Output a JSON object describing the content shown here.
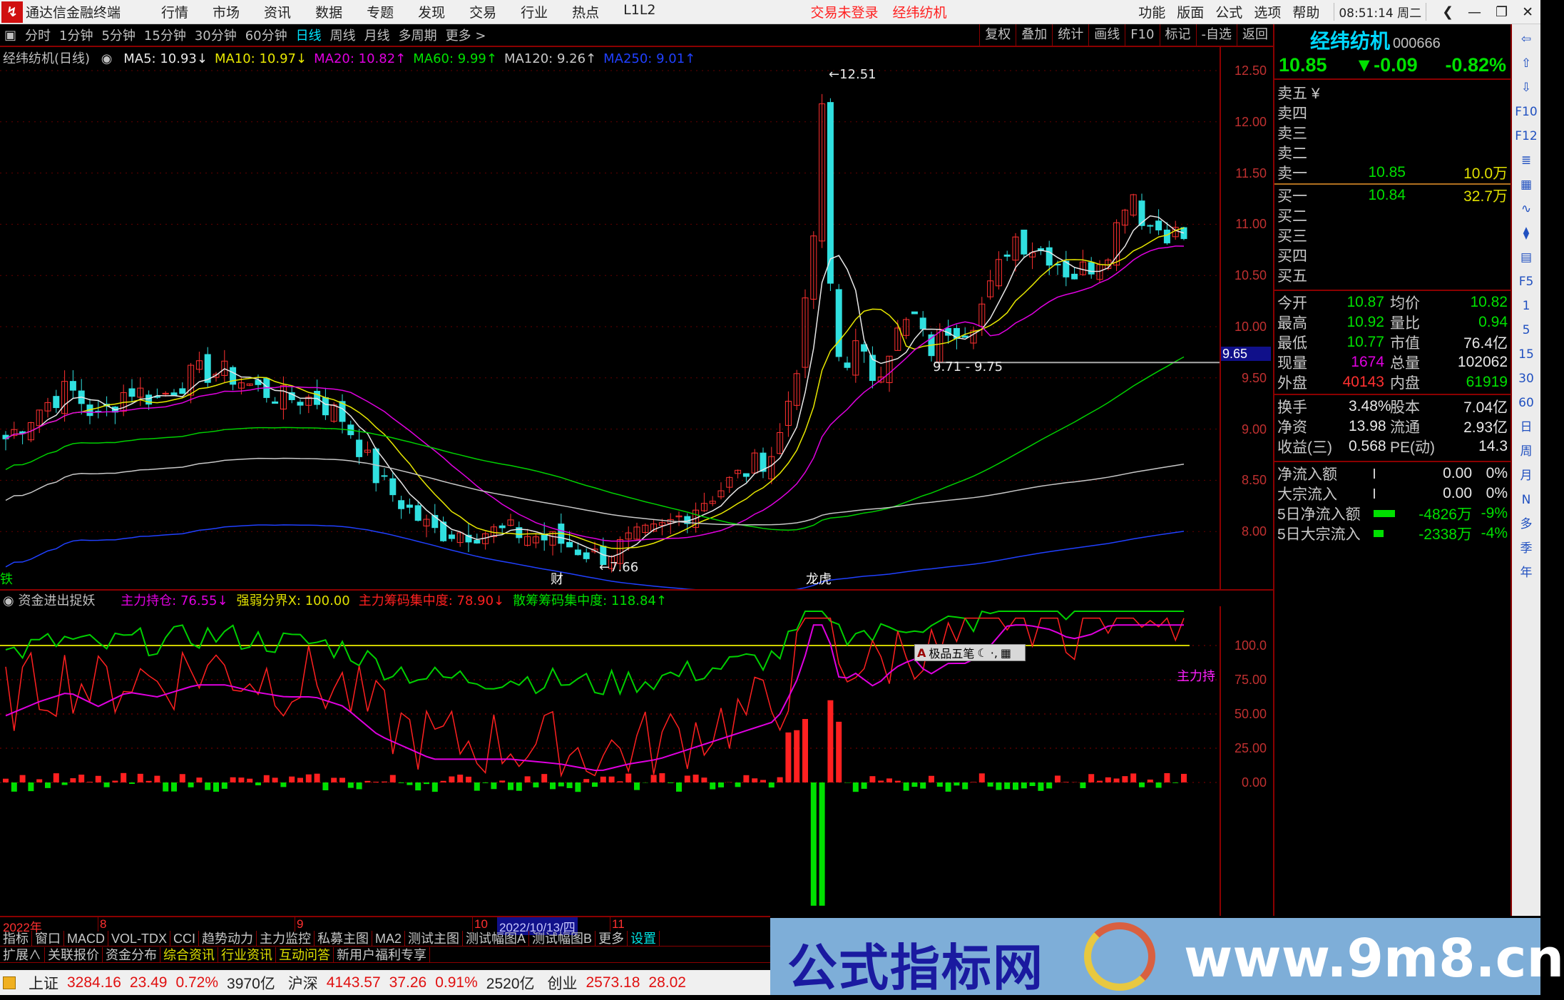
{
  "titlebar": {
    "app": "通达信金融终端",
    "menus": [
      "行情",
      "市场",
      "资讯",
      "数据",
      "专题",
      "发现",
      "交易",
      "行业",
      "热点",
      "L1L2"
    ],
    "login": "交易未登录",
    "stock": "经纬纺机",
    "right_menus": [
      "功能",
      "版面",
      "公式",
      "选项",
      "帮助"
    ],
    "time": "08:51:14 周二"
  },
  "toolbar": {
    "periods": [
      "分时",
      "1分钟",
      "5分钟",
      "15分钟",
      "30分钟",
      "60分钟",
      "日线",
      "周线",
      "月线",
      "多周期",
      "更多 >"
    ],
    "selected": "日线",
    "tools": [
      "复权",
      "叠加",
      "统计",
      "画线",
      "F10",
      "标记",
      "-自选",
      "返回"
    ]
  },
  "main_chart": {
    "title": "经纬纺机(日线)",
    "ma": [
      {
        "label": "MA5: 10.93↓",
        "color": "#e8e8e8"
      },
      {
        "label": "MA10: 10.97↓",
        "color": "#e8e800"
      },
      {
        "label": "MA20: 10.82↑",
        "color": "#e000e0"
      },
      {
        "label": "MA60: 9.99↑",
        "color": "#00e000"
      },
      {
        "label": "MA120: 9.26↑",
        "color": "#c8c8c8"
      },
      {
        "label": "MA250: 9.01↑",
        "color": "#2040ff"
      }
    ],
    "price_axis": [
      "12.50",
      "12.00",
      "11.50",
      "11.00",
      "10.50",
      "10.00",
      "9.50",
      "9.00",
      "8.50",
      "8.00"
    ],
    "high_label": "12.51",
    "low_label": "7.66",
    "range_label": "9.71 - 9.75",
    "cursor_price": "9.65",
    "markers": [
      "铁",
      "财",
      "龙虎"
    ]
  },
  "indicator": {
    "name": "资金进出捉妖",
    "values": [
      {
        "label": "主力持仓: 76.55↓",
        "color": "#e000e0"
      },
      {
        "label": "强弱分界X: 100.00",
        "color": "#e0e000"
      },
      {
        "label": "主力筹码集中度: 78.90↓",
        "color": "#ff2020"
      },
      {
        "label": "散筹筹码集中度: 118.84↑",
        "color": "#00e000"
      }
    ],
    "axis": [
      "100.0",
      "75.00",
      "50.00",
      "25.00",
      "0.00"
    ],
    "tag": "主力持"
  },
  "ime": {
    "label": "极品五笔"
  },
  "dates": {
    "year": "2022年",
    "months": [
      "8",
      "9",
      "10",
      "11"
    ],
    "cursor": "2022/10/13/四"
  },
  "tabs1": [
    "指标",
    "窗口",
    "MACD",
    "VOL-TDX",
    "CCI",
    "趋势动力",
    "主力监控",
    "私募主图",
    "MA2",
    "测试主图",
    "测试幅图A",
    "测试幅图B",
    "更多",
    "设置"
  ],
  "tabs2": [
    "扩展∧",
    "关联报价",
    "资金分布",
    "综合资讯",
    "行业资讯",
    "互动问答",
    "新用户福利专享"
  ],
  "status": {
    "items": [
      [
        "上证",
        "3284.16",
        "23.49",
        "0.72%",
        "3970亿"
      ],
      [
        "沪深",
        "4143.57",
        "37.26",
        "0.91%",
        "2520亿"
      ],
      [
        "创业",
        "2573.18",
        "28.02"
      ]
    ]
  },
  "quote": {
    "name": "经纬纺机",
    "code": "000666",
    "price": "10.85",
    "change": "▼-0.09",
    "pct": "-0.82%",
    "asks": [
      [
        "卖五 ¥",
        "",
        ""
      ],
      [
        "卖四",
        "",
        ""
      ],
      [
        "卖三",
        "",
        ""
      ],
      [
        "卖二",
        "",
        ""
      ],
      [
        "卖一",
        "10.85",
        "10.0万"
      ]
    ],
    "bids": [
      [
        "买一",
        "10.84",
        "32.7万"
      ],
      [
        "买二",
        "",
        ""
      ],
      [
        "买三",
        "",
        ""
      ],
      [
        "买四",
        "",
        ""
      ],
      [
        "买五",
        "",
        ""
      ]
    ],
    "stats1": [
      [
        "今开",
        "10.87",
        "均价",
        "10.82"
      ],
      [
        "最高",
        "10.92",
        "量比",
        "0.94"
      ],
      [
        "最低",
        "10.77",
        "市值",
        "76.4亿"
      ],
      [
        "现量",
        "1674",
        "总量",
        "102062"
      ],
      [
        "外盘",
        "40143",
        "内盘",
        "61919"
      ]
    ],
    "stats2": [
      [
        "换手",
        "3.48%",
        "股本",
        "7.04亿"
      ],
      [
        "净资",
        "13.98",
        "流通",
        "2.93亿"
      ],
      [
        "收益(三)",
        "0.568",
        "PE(动)",
        "14.3"
      ]
    ],
    "flows": [
      [
        "净流入额",
        "0.00",
        "0%"
      ],
      [
        "大宗流入",
        "0.00",
        "0%"
      ],
      [
        "5日净流入额",
        "-4826万",
        "-9%"
      ],
      [
        "5日大宗流入",
        "-2338万",
        "-4%"
      ]
    ]
  },
  "side_icons": [
    "arrow-left",
    "arrow-up",
    "arrow-down",
    "F10",
    "F12",
    "F5",
    "1",
    "5",
    "15",
    "30",
    "60",
    "日",
    "周",
    "月",
    "N",
    "多",
    "季",
    "年"
  ],
  "banner": {
    "cn": "公式指标网",
    "url": "www.9m8.cn"
  }
}
